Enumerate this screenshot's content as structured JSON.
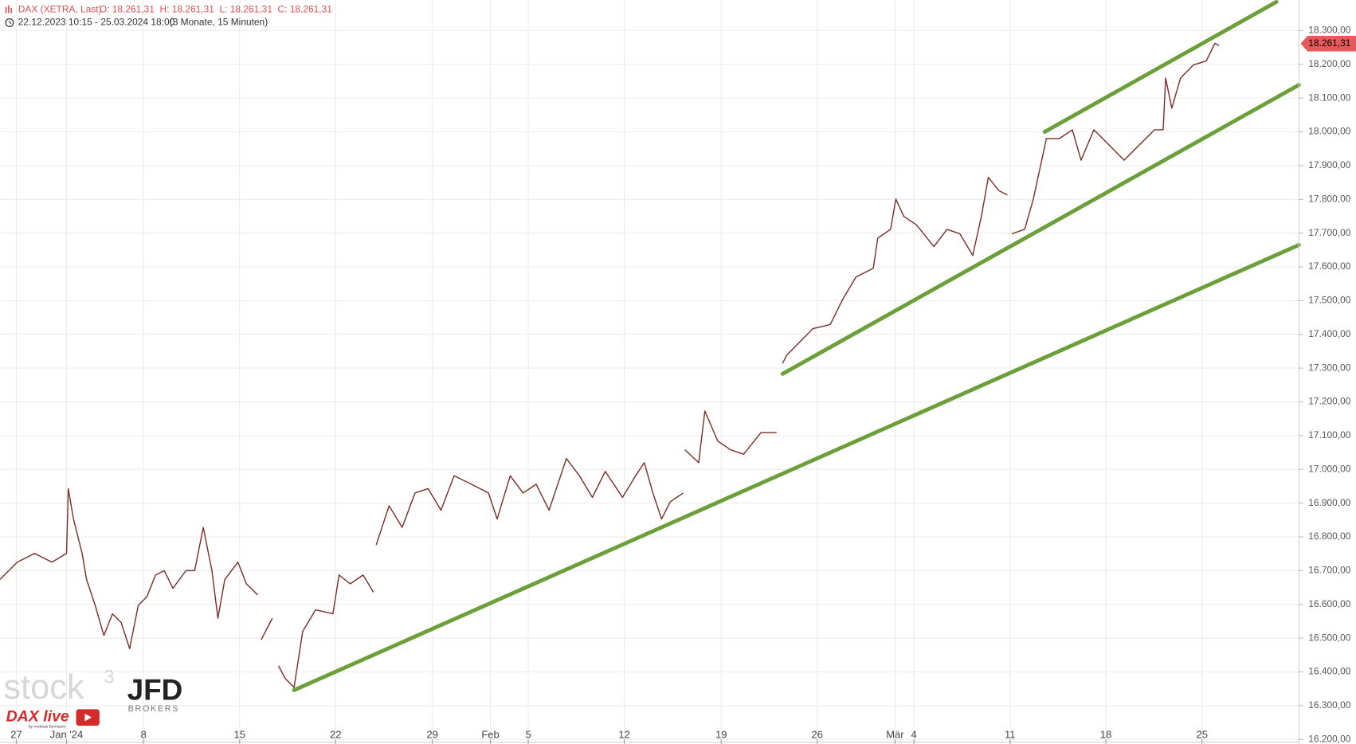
{
  "header": {
    "instrument": "DAX (XETRA, Last)",
    "ohlc": "O: 18.261,31  H: 18.261,31  L: 18.261,31  C: 18.261,31",
    "range": "22.12.2023 10:15 - 25.03.2024 18:00",
    "period": "(3 Monate, 15 Minuten)"
  },
  "branding": {
    "stock": "stock",
    "stock_sup": "3",
    "broker": "JFD",
    "broker_sub": "BROKERS",
    "show": "DAX live",
    "show_by": "by Andreas Bernstein"
  },
  "chart_data": {
    "type": "line",
    "x": [
      0,
      0.9,
      1.8,
      2.7,
      3.46,
      3.55,
      3.82,
      4.27,
      4.5,
      4.95,
      5.4,
      5.85,
      6.3,
      6.74,
      7.19,
      7.64,
      8.09,
      8.54,
      8.99,
      9.67,
      10.12,
      10.57,
      11.02,
      11.33,
      11.69,
      12.37,
      12.81,
      13.4,
      13.5,
      13.58,
      14.16,
      14.3,
      14.48,
      14.84,
      15.29,
      15.74,
      16.41,
      17.31,
      17.63,
      18.21,
      18.88,
      19.42,
      19.5,
      19.56,
      20.23,
      20.91,
      21.58,
      22.26,
      22.93,
      23.61,
      24.51,
      25.4,
      25.85,
      26.53,
      27.2,
      27.88,
      28.55,
      29.45,
      30.13,
      30.8,
      31.47,
      32.37,
      33.05,
      33.5,
      33.95,
      34.4,
      34.85,
      35.52,
      35.57,
      35.61,
      36.33,
      36.65,
      37.32,
      37.99,
      38.67,
      39.57,
      40.38,
      40.5,
      40.69,
      40.92,
      41.59,
      42.27,
      43.17,
      43.84,
      44.51,
      45.41,
      45.64,
      46.31,
      46.58,
      46.99,
      47.66,
      48.56,
      49.24,
      49.91,
      50.58,
      51.03,
      51.39,
      51.93,
      52.38,
      52.5,
      52.61,
      53.28,
      53.73,
      54.41,
      55.08,
      55.76,
      56.21,
      56.88,
      57.55,
      58.45,
      59.13,
      60.03,
      60.48,
      60.61,
      60.93,
      61.38,
      62.05,
      62.72,
      63.17,
      63.4
    ],
    "series": [
      {
        "name": "DAX",
        "color": "#7a2e26",
        "values": [
          16674,
          16725,
          16751,
          16725,
          16751,
          16943,
          16853,
          16751,
          16674,
          16597,
          16508,
          16572,
          16546,
          16469,
          16597,
          16623,
          16687,
          16700,
          16648,
          16700,
          16700,
          16828,
          16700,
          16559,
          16674,
          16725,
          16661,
          16628,
          null,
          16495,
          16559,
          null,
          16418,
          16380,
          16354,
          16520,
          16584,
          16572,
          16687,
          16661,
          16687,
          16636,
          null,
          16776,
          16892,
          16828,
          16930,
          16943,
          16879,
          16981,
          16956,
          16930,
          16853,
          16981,
          16930,
          16956,
          16879,
          17032,
          16981,
          16917,
          16994,
          16917,
          16981,
          17020,
          16930,
          16853,
          16904,
          16930,
          null,
          17058,
          17020,
          17173,
          17084,
          17058,
          17045,
          17109,
          17109,
          null,
          17314,
          17339,
          17378,
          17417,
          17429,
          17506,
          17570,
          17596,
          17685,
          17711,
          17801,
          17750,
          17724,
          17660,
          17711,
          17698,
          17634,
          17750,
          17865,
          17826,
          17813,
          null,
          17698,
          17711,
          17801,
          17980,
          17980,
          18006,
          17916,
          18006,
          17968,
          17916,
          17955,
          18006,
          18006,
          18159,
          18070,
          18159,
          18198,
          18210,
          18262,
          18256
        ]
      }
    ],
    "trendlines": [
      {
        "color": "#6a9f3a",
        "x": [
          15.29,
          67.54
        ],
        "values": [
          16346,
          17665
        ]
      },
      {
        "color": "#6a9f3a",
        "x": [
          40.69,
          67.54
        ],
        "values": [
          17283,
          18139
        ]
      },
      {
        "color": "#6a9f3a",
        "x": [
          54.32,
          66.37
        ],
        "values": [
          18000,
          18385
        ]
      }
    ],
    "last_price": {
      "value": 18261.31,
      "label": "18.261,31",
      "color": "#e85a5a"
    },
    "xlim": [
      0,
      67.54
    ],
    "ylim": [
      16187,
      18390
    ],
    "xticks": [
      {
        "value": 0.85,
        "label": "27"
      },
      {
        "value": 3.46,
        "label": "Jan '24"
      },
      {
        "value": 7.46,
        "label": "8"
      },
      {
        "value": 12.46,
        "label": "15"
      },
      {
        "value": 17.45,
        "label": "22"
      },
      {
        "value": 22.48,
        "label": "29"
      },
      {
        "value": 25.5,
        "label": "Feb"
      },
      {
        "value": 27.47,
        "label": "5"
      },
      {
        "value": 32.46,
        "label": "12"
      },
      {
        "value": 37.5,
        "label": "19"
      },
      {
        "value": 42.49,
        "label": "26"
      },
      {
        "value": 46.54,
        "label": "Mär"
      },
      {
        "value": 47.52,
        "label": "4"
      },
      {
        "value": 52.52,
        "label": "11"
      },
      {
        "value": 57.5,
        "label": "18"
      },
      {
        "value": 62.5,
        "label": "25"
      }
    ],
    "yticks": [
      {
        "value": 16200,
        "label": "16.200,00"
      },
      {
        "value": 16300,
        "label": "16.300,00"
      },
      {
        "value": 16400,
        "label": "16.400,00"
      },
      {
        "value": 16500,
        "label": "16.500,00"
      },
      {
        "value": 16600,
        "label": "16.600,00"
      },
      {
        "value": 16700,
        "label": "16.700,00"
      },
      {
        "value": 16800,
        "label": "16.800,00"
      },
      {
        "value": 16900,
        "label": "16.900,00"
      },
      {
        "value": 17000,
        "label": "17.000,00"
      },
      {
        "value": 17100,
        "label": "17.100,00"
      },
      {
        "value": 17200,
        "label": "17.200,00"
      },
      {
        "value": 17300,
        "label": "17.300,00"
      },
      {
        "value": 17400,
        "label": "17.400,00"
      },
      {
        "value": 17500,
        "label": "17.500,00"
      },
      {
        "value": 17600,
        "label": "17.600,00"
      },
      {
        "value": 17700,
        "label": "17.700,00"
      },
      {
        "value": 17800,
        "label": "17.800,00"
      },
      {
        "value": 17900,
        "label": "17.900,00"
      },
      {
        "value": 18000,
        "label": "18.000,00"
      },
      {
        "value": 18100,
        "label": "18.100,00"
      },
      {
        "value": 18200,
        "label": "18.200,00"
      },
      {
        "value": 18300,
        "label": "18.300,00"
      }
    ],
    "grid": true
  }
}
